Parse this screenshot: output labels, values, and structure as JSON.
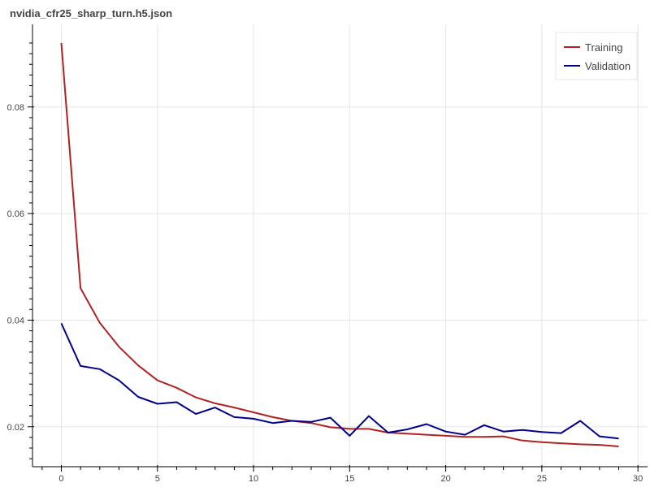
{
  "chart_data": {
    "type": "line",
    "title": "nvidia_cfr25_sharp_turn.h5.json",
    "xlabel": "",
    "ylabel": "",
    "xlim": [
      -1.5,
      30.5
    ],
    "ylim": [
      0.0125,
      0.0955
    ],
    "x_ticks": [
      0,
      5,
      10,
      15,
      20,
      25,
      30
    ],
    "y_ticks": [
      0.02,
      0.04,
      0.06,
      0.08
    ],
    "x_tick_labels": [
      "0",
      "5",
      "10",
      "15",
      "20",
      "25",
      "30"
    ],
    "y_tick_labels": [
      "0.02",
      "0.04",
      "0.06",
      "0.08"
    ],
    "grid": true,
    "legend_position": "top-right",
    "x": [
      0,
      1,
      2,
      3,
      4,
      5,
      6,
      7,
      8,
      9,
      10,
      11,
      12,
      13,
      14,
      15,
      16,
      17,
      18,
      19,
      20,
      21,
      22,
      23,
      24,
      25,
      26,
      27,
      28,
      29
    ],
    "series": [
      {
        "name": "Training",
        "color": "#b22222",
        "values": [
          0.092,
          0.046,
          0.0395,
          0.035,
          0.0315,
          0.0287,
          0.0273,
          0.0255,
          0.0244,
          0.0236,
          0.0227,
          0.0218,
          0.0211,
          0.0207,
          0.0199,
          0.0196,
          0.0196,
          0.0189,
          0.0187,
          0.0185,
          0.0183,
          0.0181,
          0.0181,
          0.0182,
          0.0174,
          0.0171,
          0.0169,
          0.0167,
          0.0166,
          0.0163
        ]
      },
      {
        "name": "Validation",
        "color": "#00008b",
        "values": [
          0.0394,
          0.0314,
          0.0308,
          0.0287,
          0.0256,
          0.0243,
          0.0246,
          0.0224,
          0.0236,
          0.0218,
          0.0215,
          0.0207,
          0.0211,
          0.0209,
          0.0217,
          0.0183,
          0.022,
          0.0189,
          0.0195,
          0.0205,
          0.0191,
          0.0185,
          0.0203,
          0.0191,
          0.0194,
          0.019,
          0.0188,
          0.0211,
          0.0182,
          0.0178
        ]
      }
    ]
  }
}
